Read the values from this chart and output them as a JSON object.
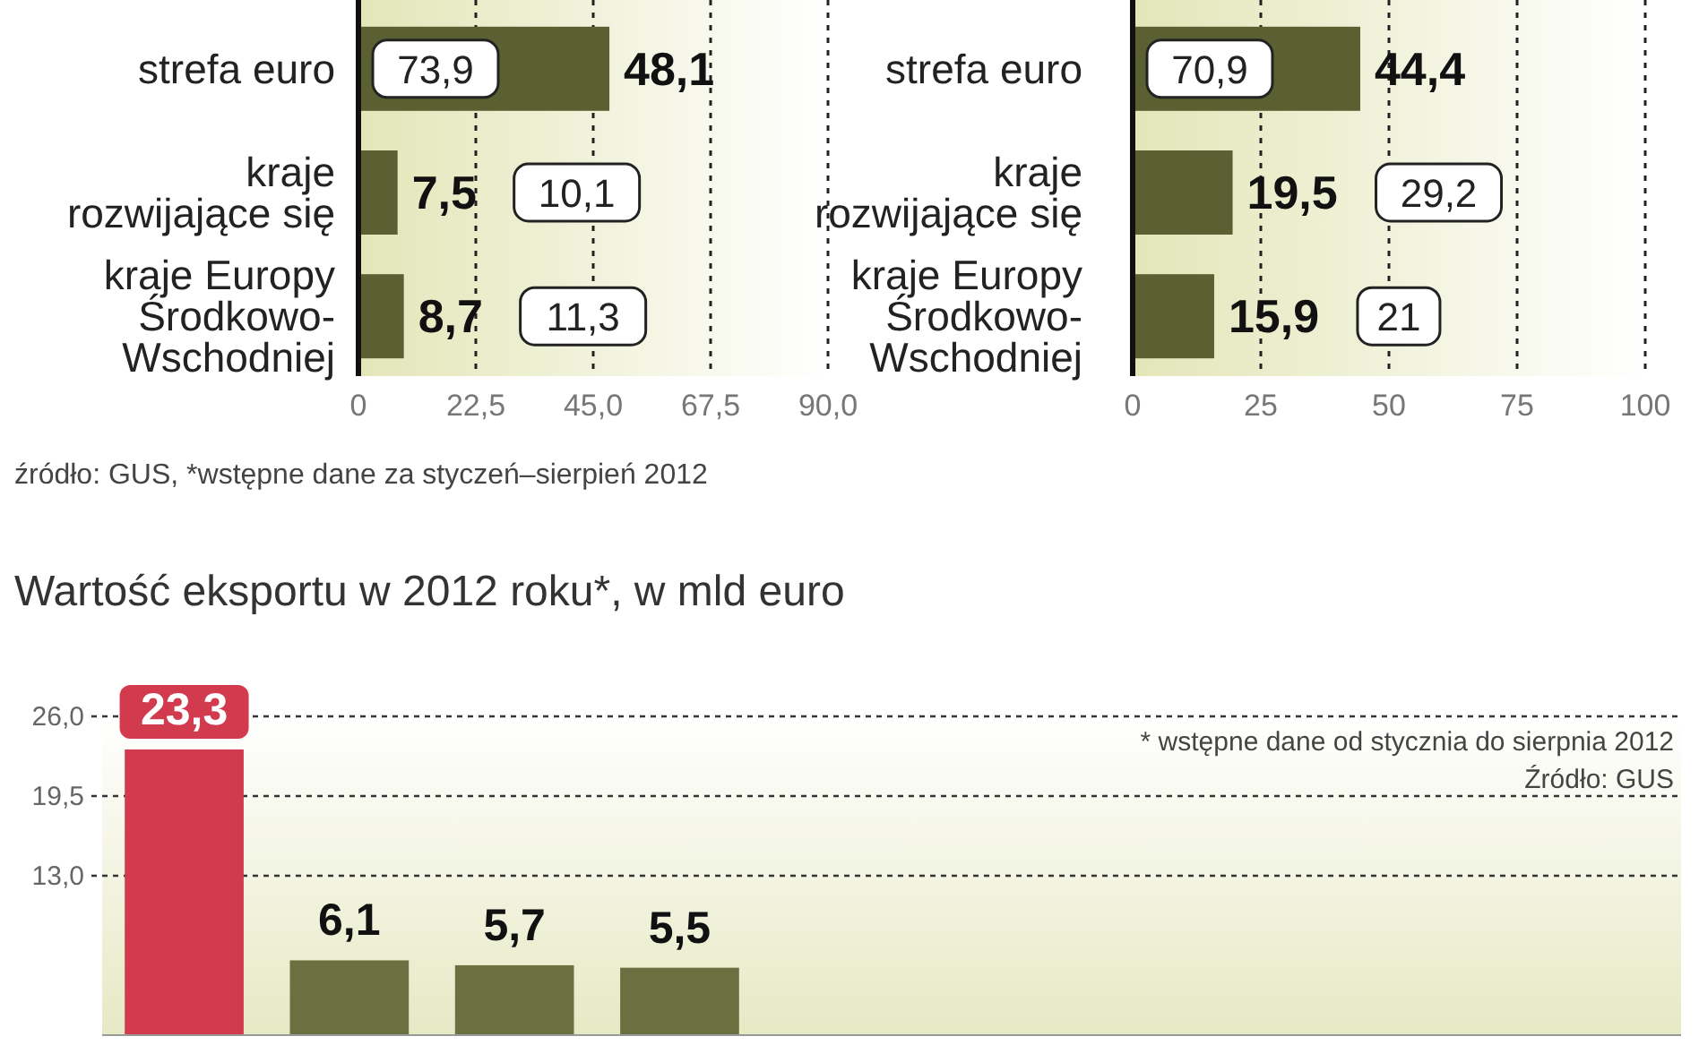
{
  "chart_data": [
    {
      "type": "bar",
      "orientation": "horizontal",
      "categories": [
        "strefa euro",
        "kraje rozwijające się",
        "kraje Europy Środkowo-Wschodniej"
      ],
      "values": [
        48.1,
        7.5,
        8.7
      ],
      "color": "#5b6033",
      "value_labels": [
        "48,1",
        "7,5",
        "8,7"
      ],
      "xlim": [
        0,
        90
      ],
      "xticks": [
        0,
        {
          "value": 22.5,
          "label": "22,5"
        },
        {
          "value": 45,
          "label": "45,0"
        },
        {
          "value": 67.5,
          "label": "67,5"
        },
        {
          "value": 90,
          "label": "90,0"
        }
      ],
      "grid": "x",
      "annotations": [
        "73,9",
        "10,1",
        "11,3",
        "źródło: GUS, *wstępne dane za styczeń–sierpień 2012"
      ]
    },
    {
      "type": "bar",
      "orientation": "horizontal",
      "categories": [
        "strefa euro",
        "kraje rozwijające się",
        "kraje Europy Środkowo-Wschodniej"
      ],
      "values": [
        44.4,
        19.5,
        15.9
      ],
      "color": "#5b6033",
      "value_labels": [
        "44,4",
        "19,5",
        "15,9"
      ],
      "xlim": [
        0,
        100
      ],
      "xticks": [
        0,
        25,
        50,
        75,
        100
      ],
      "grid": "x",
      "annotations": [
        "70,9",
        "29,2",
        "21"
      ]
    },
    {
      "type": "bar",
      "title": "Wartość eksportu w 2012 roku*, w mld euro",
      "categories": [
        null,
        null,
        null,
        null
      ],
      "values": [
        23.3,
        6.1,
        5.7,
        5.5
      ],
      "colors": [
        "#d23a4e",
        "#6b7040",
        "#6b7040",
        "#6b7040"
      ],
      "value_labels": [
        "23,3",
        "6,1",
        "5,7",
        "5,5"
      ],
      "ylim": [
        0,
        26
      ],
      "yticks": [
        {
          "value": 13,
          "label": "13,0"
        },
        {
          "value": 19.5,
          "label": "19,5"
        },
        {
          "value": 26,
          "label": "26,0"
        }
      ],
      "grid": "y",
      "annotations": [
        "* wstępne dane od stycznia do sierpnia 2012",
        "Źródło: GUS"
      ]
    }
  ]
}
